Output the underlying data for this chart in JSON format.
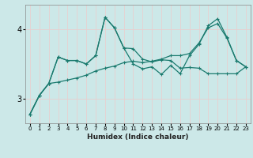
{
  "xlabel": "Humidex (Indice chaleur)",
  "background_color": "#cce8e8",
  "grid_color": "#f0f0f0",
  "line_color": "#1a7a6e",
  "xlim": [
    -0.5,
    23.5
  ],
  "ylim": [
    2.65,
    4.35
  ],
  "xticks": [
    0,
    1,
    2,
    3,
    4,
    5,
    6,
    7,
    8,
    9,
    10,
    11,
    12,
    13,
    14,
    15,
    16,
    17,
    18,
    19,
    20,
    21,
    22,
    23
  ],
  "yticks": [
    3,
    4
  ],
  "series1_x": [
    0,
    1,
    2,
    3,
    4,
    5,
    6,
    7,
    8,
    9,
    10,
    11,
    12,
    13,
    14,
    15,
    16,
    17,
    18,
    19,
    20,
    21,
    22,
    23
  ],
  "series1_y": [
    2.78,
    3.05,
    3.22,
    3.6,
    3.55,
    3.55,
    3.5,
    3.62,
    4.17,
    4.02,
    3.73,
    3.72,
    3.57,
    3.53,
    3.56,
    3.55,
    3.44,
    3.45,
    3.44,
    3.36,
    3.36,
    3.36,
    3.36,
    3.46
  ],
  "series2_x": [
    0,
    1,
    2,
    3,
    4,
    5,
    6,
    7,
    8,
    9,
    10,
    11,
    12,
    13,
    14,
    15,
    16,
    17,
    18,
    19,
    20,
    21,
    22,
    23
  ],
  "series2_y": [
    2.78,
    3.05,
    3.22,
    3.24,
    3.27,
    3.3,
    3.34,
    3.4,
    3.44,
    3.47,
    3.52,
    3.54,
    3.52,
    3.54,
    3.57,
    3.62,
    3.62,
    3.65,
    3.8,
    4.02,
    4.08,
    3.87,
    3.55,
    3.46
  ],
  "series3_x": [
    0,
    1,
    2,
    3,
    4,
    5,
    6,
    7,
    8,
    9,
    10,
    11,
    12,
    13,
    14,
    15,
    16,
    17,
    18,
    19,
    20,
    21,
    22,
    23
  ],
  "series3_y": [
    2.78,
    3.05,
    3.22,
    3.6,
    3.55,
    3.55,
    3.5,
    3.62,
    4.17,
    4.02,
    3.73,
    3.5,
    3.43,
    3.46,
    3.35,
    3.48,
    3.36,
    3.62,
    3.78,
    4.05,
    4.15,
    3.88,
    3.55,
    3.46
  ]
}
